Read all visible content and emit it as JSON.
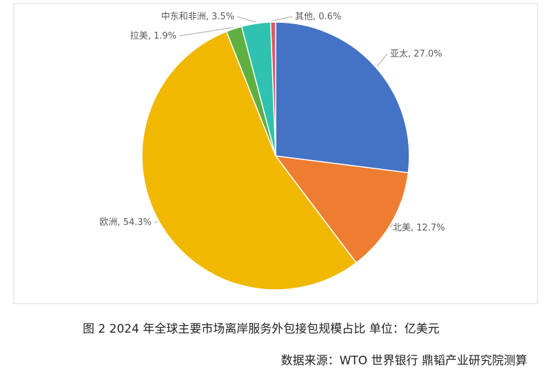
{
  "chart_data": {
    "type": "pie",
    "categories": [
      "亚太",
      "北美",
      "欧洲",
      "拉美",
      "中东和非洲",
      "其他"
    ],
    "values": [
      27.0,
      12.7,
      54.3,
      1.9,
      3.5,
      0.6
    ],
    "value_labels": [
      "27.0%",
      "12.7%",
      "54.3%",
      "1.9%",
      "3.5%",
      "0.6%"
    ],
    "label_separator": ", ",
    "colors": [
      "#4472c4",
      "#ed7d31",
      "#f0b800",
      "#5fb040",
      "#2fc2b0",
      "#e0566a"
    ],
    "caption": "图 2 2024 年全球主要市场离岸服务外包接包规模占比 单位：亿美元",
    "source": "数据来源：WTO 世界银行 鼎韬产业研究院测算"
  }
}
